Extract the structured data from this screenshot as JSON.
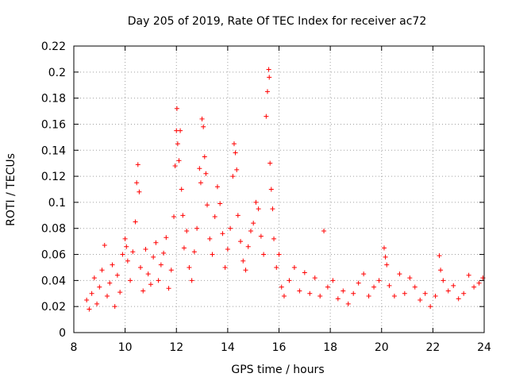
{
  "chart_data": {
    "type": "scatter",
    "title": "Day 205 of 2019, Rate Of TEC Index for receiver ac72",
    "xlabel": "GPS time / hours",
    "ylabel": "ROTI / TECUs",
    "xlim": [
      8,
      24
    ],
    "ylim": [
      0,
      0.22
    ],
    "x_ticks": [
      8,
      10,
      12,
      14,
      16,
      18,
      20,
      22,
      24
    ],
    "x_tick_labels": [
      "8",
      "10",
      "12",
      "14",
      "16",
      "18",
      "20",
      "22",
      "24"
    ],
    "y_ticks": [
      0,
      0.02,
      0.04,
      0.06,
      0.08,
      0.1,
      0.12,
      0.14,
      0.16,
      0.18,
      0.2,
      0.22
    ],
    "y_tick_labels": [
      "0",
      "0.02",
      "0.04",
      "0.06",
      "0.08",
      "0.1",
      "0.12",
      "0.14",
      "0.16",
      "0.18",
      "0.2",
      "0.22"
    ],
    "grid": true,
    "marker": "plus",
    "color": "#ff0000",
    "series": [
      {
        "name": "ROTI",
        "points": [
          [
            8.5,
            0.025
          ],
          [
            8.6,
            0.018
          ],
          [
            8.7,
            0.03
          ],
          [
            8.8,
            0.042
          ],
          [
            8.9,
            0.022
          ],
          [
            9.0,
            0.035
          ],
          [
            9.1,
            0.048
          ],
          [
            9.2,
            0.067
          ],
          [
            9.3,
            0.028
          ],
          [
            9.4,
            0.038
          ],
          [
            9.5,
            0.052
          ],
          [
            9.6,
            0.02
          ],
          [
            9.7,
            0.044
          ],
          [
            9.8,
            0.031
          ],
          [
            9.9,
            0.06
          ],
          [
            10.0,
            0.072
          ],
          [
            10.05,
            0.066
          ],
          [
            10.1,
            0.055
          ],
          [
            10.2,
            0.04
          ],
          [
            10.3,
            0.062
          ],
          [
            10.4,
            0.085
          ],
          [
            10.45,
            0.115
          ],
          [
            10.5,
            0.129
          ],
          [
            10.55,
            0.108
          ],
          [
            10.6,
            0.05
          ],
          [
            10.7,
            0.032
          ],
          [
            10.8,
            0.064
          ],
          [
            10.9,
            0.045
          ],
          [
            11.0,
            0.037
          ],
          [
            11.1,
            0.058
          ],
          [
            11.2,
            0.069
          ],
          [
            11.3,
            0.04
          ],
          [
            11.4,
            0.052
          ],
          [
            11.5,
            0.061
          ],
          [
            11.6,
            0.073
          ],
          [
            11.7,
            0.034
          ],
          [
            11.8,
            0.048
          ],
          [
            11.9,
            0.089
          ],
          [
            11.95,
            0.128
          ],
          [
            12.0,
            0.155
          ],
          [
            12.02,
            0.172
          ],
          [
            12.05,
            0.145
          ],
          [
            12.1,
            0.132
          ],
          [
            12.15,
            0.155
          ],
          [
            12.2,
            0.11
          ],
          [
            12.25,
            0.09
          ],
          [
            12.3,
            0.065
          ],
          [
            12.4,
            0.078
          ],
          [
            12.5,
            0.05
          ],
          [
            12.6,
            0.04
          ],
          [
            12.7,
            0.062
          ],
          [
            12.8,
            0.08
          ],
          [
            12.9,
            0.126
          ],
          [
            12.95,
            0.115
          ],
          [
            13.0,
            0.164
          ],
          [
            13.05,
            0.158
          ],
          [
            13.1,
            0.135
          ],
          [
            13.15,
            0.122
          ],
          [
            13.2,
            0.098
          ],
          [
            13.3,
            0.072
          ],
          [
            13.4,
            0.06
          ],
          [
            13.5,
            0.089
          ],
          [
            13.6,
            0.112
          ],
          [
            13.7,
            0.099
          ],
          [
            13.8,
            0.076
          ],
          [
            13.9,
            0.05
          ],
          [
            14.0,
            0.064
          ],
          [
            14.1,
            0.08
          ],
          [
            14.2,
            0.12
          ],
          [
            14.25,
            0.145
          ],
          [
            14.3,
            0.138
          ],
          [
            14.35,
            0.125
          ],
          [
            14.4,
            0.09
          ],
          [
            14.5,
            0.07
          ],
          [
            14.6,
            0.055
          ],
          [
            14.7,
            0.048
          ],
          [
            14.8,
            0.066
          ],
          [
            14.9,
            0.078
          ],
          [
            15.0,
            0.084
          ],
          [
            15.1,
            0.1
          ],
          [
            15.2,
            0.095
          ],
          [
            15.3,
            0.074
          ],
          [
            15.4,
            0.06
          ],
          [
            15.5,
            0.166
          ],
          [
            15.55,
            0.185
          ],
          [
            15.6,
            0.202
          ],
          [
            15.62,
            0.196
          ],
          [
            15.65,
            0.13
          ],
          [
            15.7,
            0.11
          ],
          [
            15.75,
            0.095
          ],
          [
            15.8,
            0.072
          ],
          [
            15.9,
            0.05
          ],
          [
            16.0,
            0.06
          ],
          [
            16.1,
            0.035
          ],
          [
            16.2,
            0.028
          ],
          [
            16.4,
            0.04
          ],
          [
            16.6,
            0.05
          ],
          [
            16.8,
            0.032
          ],
          [
            17.0,
            0.046
          ],
          [
            17.2,
            0.03
          ],
          [
            17.4,
            0.042
          ],
          [
            17.6,
            0.028
          ],
          [
            17.75,
            0.078
          ],
          [
            17.9,
            0.035
          ],
          [
            18.1,
            0.04
          ],
          [
            18.3,
            0.026
          ],
          [
            18.5,
            0.032
          ],
          [
            18.7,
            0.022
          ],
          [
            18.9,
            0.03
          ],
          [
            19.1,
            0.038
          ],
          [
            19.3,
            0.045
          ],
          [
            19.5,
            0.028
          ],
          [
            19.7,
            0.035
          ],
          [
            19.9,
            0.04
          ],
          [
            20.1,
            0.065
          ],
          [
            20.15,
            0.058
          ],
          [
            20.2,
            0.052
          ],
          [
            20.3,
            0.036
          ],
          [
            20.5,
            0.028
          ],
          [
            20.7,
            0.045
          ],
          [
            20.9,
            0.03
          ],
          [
            21.1,
            0.042
          ],
          [
            21.3,
            0.035
          ],
          [
            21.5,
            0.025
          ],
          [
            21.7,
            0.03
          ],
          [
            21.9,
            0.02
          ],
          [
            22.1,
            0.028
          ],
          [
            22.25,
            0.059
          ],
          [
            22.3,
            0.048
          ],
          [
            22.4,
            0.04
          ],
          [
            22.6,
            0.032
          ],
          [
            22.8,
            0.036
          ],
          [
            23.0,
            0.026
          ],
          [
            23.2,
            0.03
          ],
          [
            23.4,
            0.044
          ],
          [
            23.6,
            0.035
          ],
          [
            23.8,
            0.038
          ],
          [
            23.95,
            0.042
          ]
        ]
      }
    ]
  }
}
